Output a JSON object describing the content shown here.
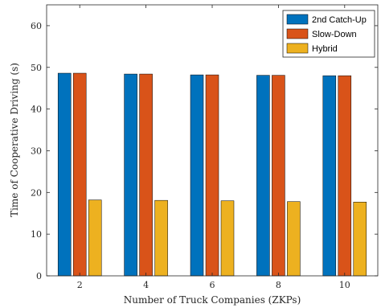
{
  "chart_data": {
    "type": "bar",
    "xlabel": "Number of Truck Companies (ZKPs)",
    "ylabel": "Time of Cooperative Driving (s)",
    "categories": [
      "2",
      "4",
      "6",
      "8",
      "10"
    ],
    "ylim": [
      0,
      65
    ],
    "yticks": [
      0,
      10,
      20,
      30,
      40,
      50,
      60
    ],
    "grid": false,
    "legend_position": "top-right",
    "series": [
      {
        "name": "2nd Catch-Up",
        "color": "#0072BD",
        "values": [
          48.6,
          48.4,
          48.2,
          48.1,
          48.0
        ]
      },
      {
        "name": "Slow-Down",
        "color": "#D95319",
        "values": [
          48.6,
          48.4,
          48.2,
          48.1,
          48.0
        ]
      },
      {
        "name": "Hybrid",
        "color": "#EDB120",
        "values": [
          18.2,
          18.1,
          18.0,
          17.8,
          17.7
        ]
      }
    ]
  }
}
